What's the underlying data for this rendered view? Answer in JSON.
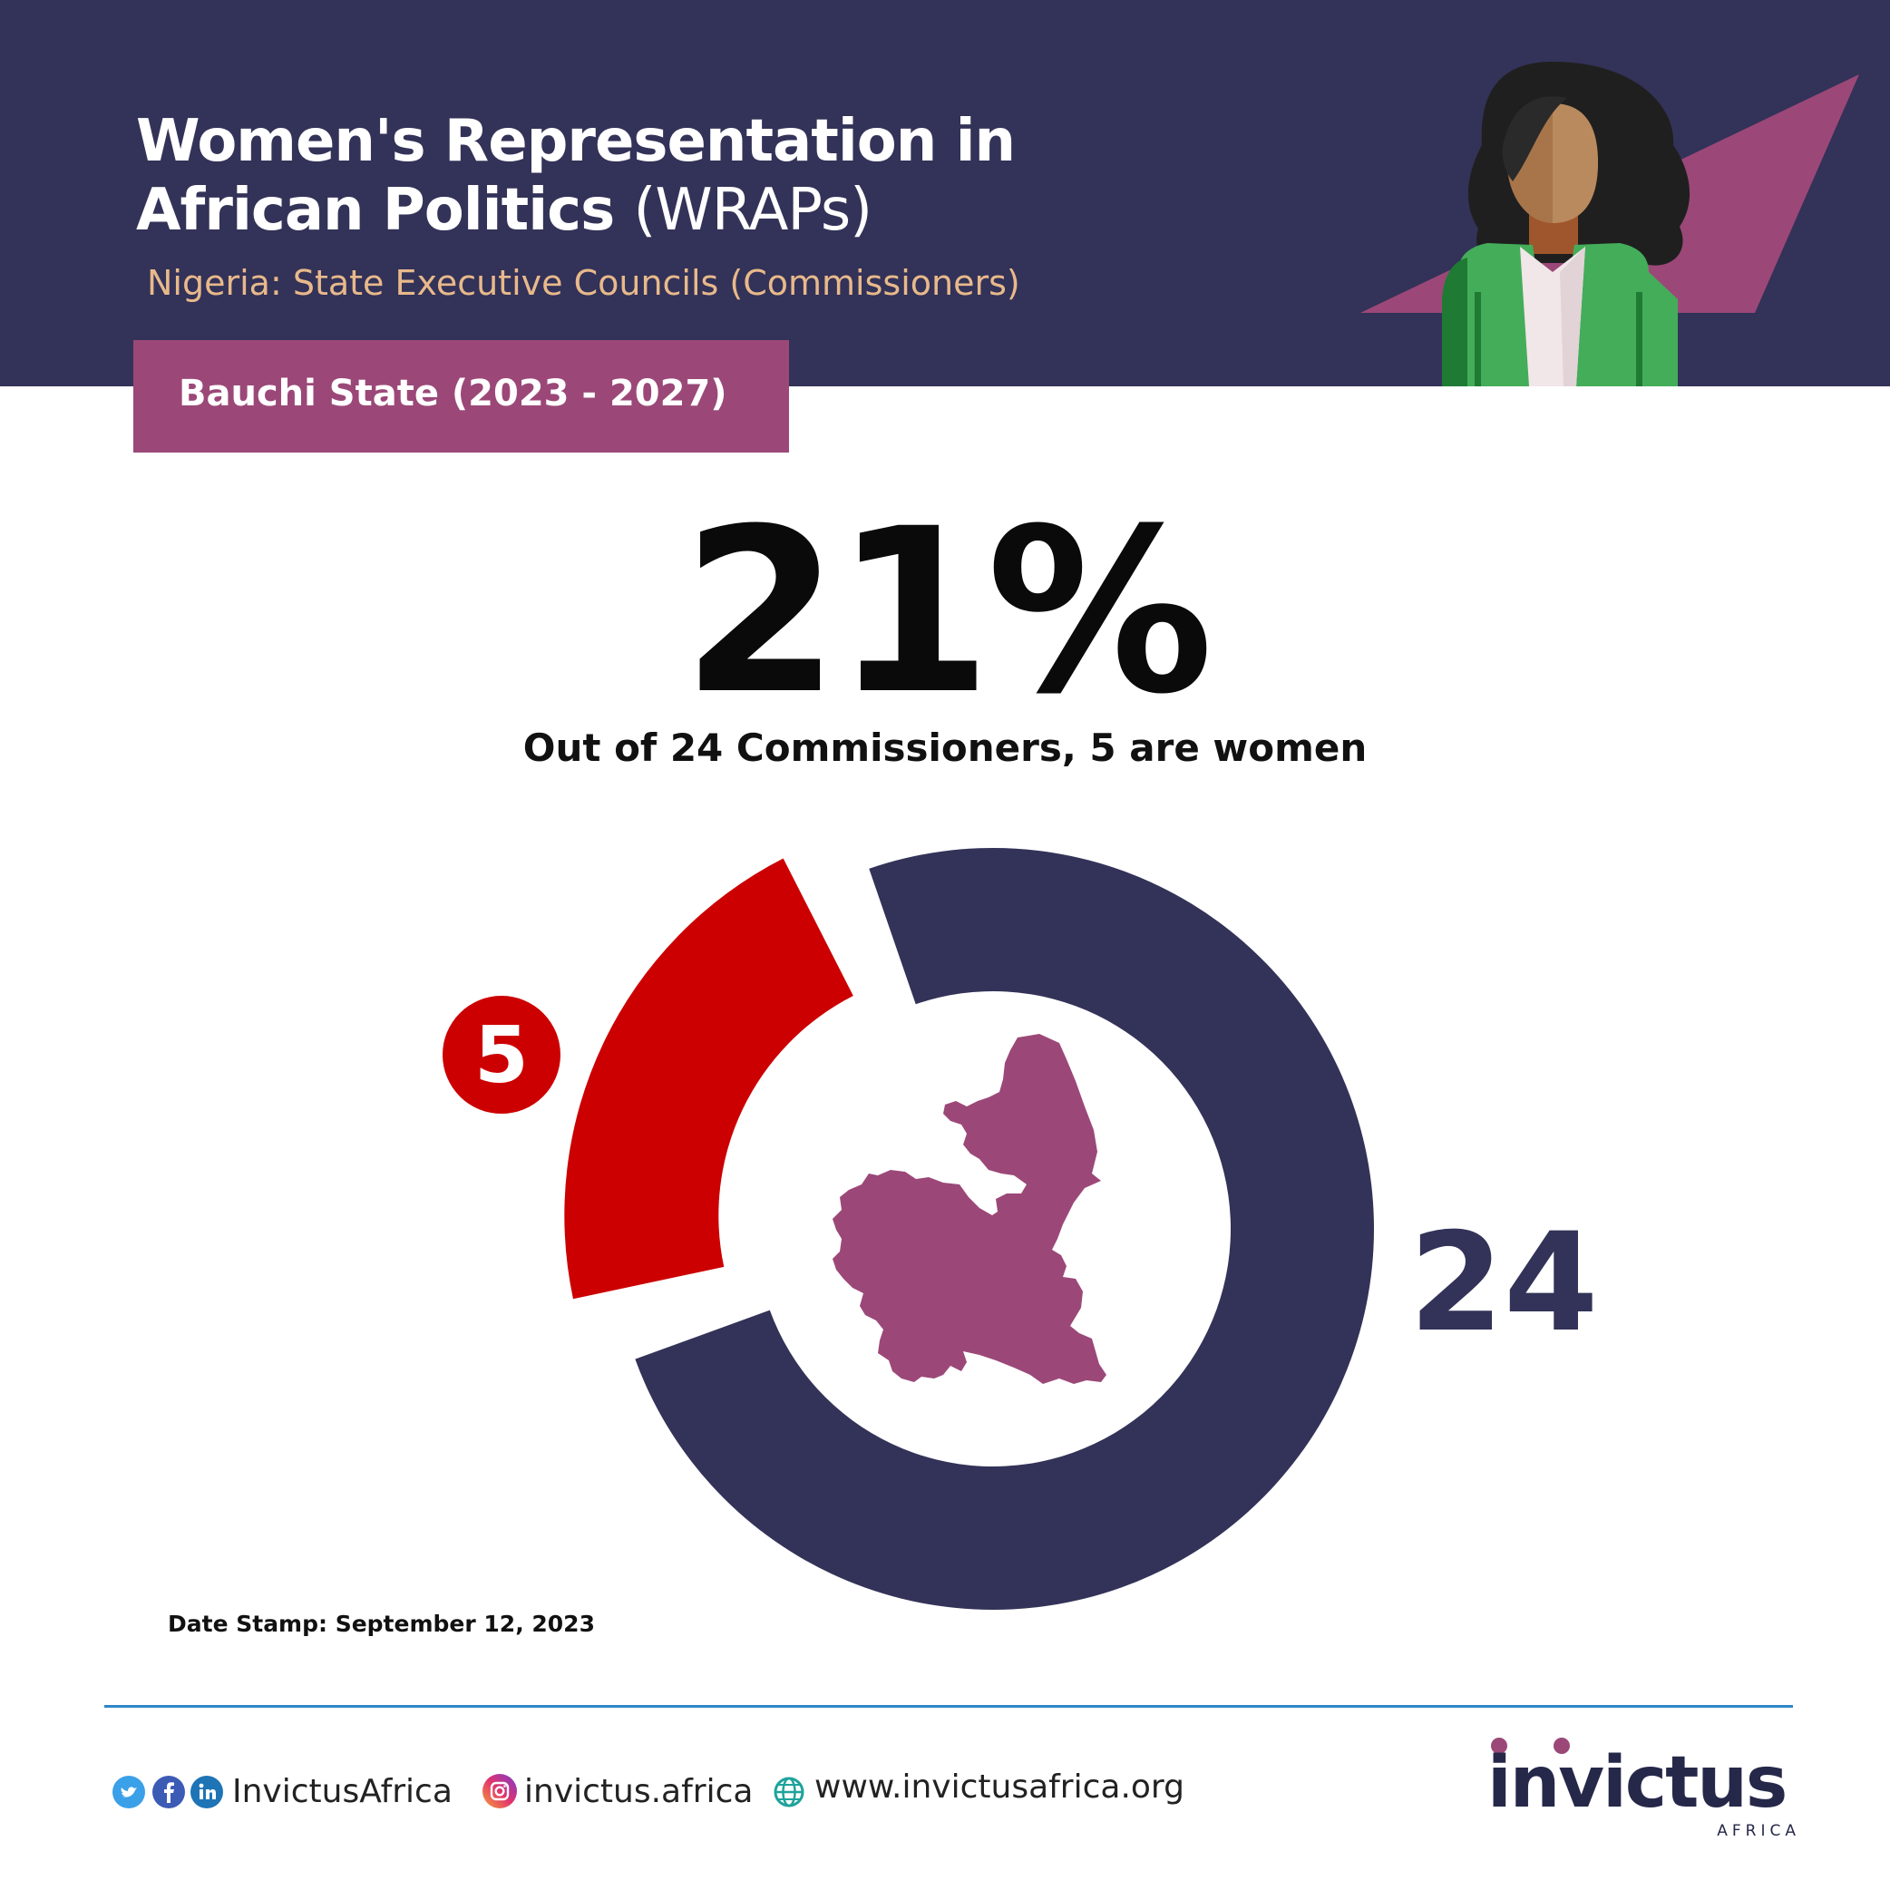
{
  "header": {
    "title_line1": "Women's Representation in",
    "title_line2_bold": "African Politics",
    "title_line2_light": "(WRAPs)",
    "subtitle": "Nigeria: State Executive Councils (Commissioners)",
    "state_label": "Bauchi State (2023 - 2027)"
  },
  "headline": {
    "percent": "21%",
    "summary": "Out of 24 Commissioners, 5 are women"
  },
  "chart_data": {
    "type": "pie",
    "variant": "donut",
    "categories": [
      "Women",
      "Total commissioners"
    ],
    "values": [
      5,
      24
    ],
    "data_labels": [
      "5",
      "24"
    ],
    "colors": [
      "#cc0000",
      "#333258"
    ],
    "women_share_percent": 21
  },
  "date_stamp": "Date Stamp: September 12, 2023",
  "footer": {
    "social_handle": "InvictusAfrica",
    "instagram": "invictus.africa",
    "website": "www.invictusafrica.org",
    "icons": [
      "twitter-icon",
      "facebook-icon",
      "linkedin-icon",
      "instagram-icon",
      "globe-icon"
    ]
  },
  "brand": {
    "logo_text": "invictus",
    "logo_subtext": "AFRICA"
  },
  "colors": {
    "header_bg": "#333258",
    "accent_purple": "#9b4878",
    "subtitle_peach": "#e8b98b",
    "women_red": "#cc0000",
    "divider_blue": "#2e86c8"
  }
}
